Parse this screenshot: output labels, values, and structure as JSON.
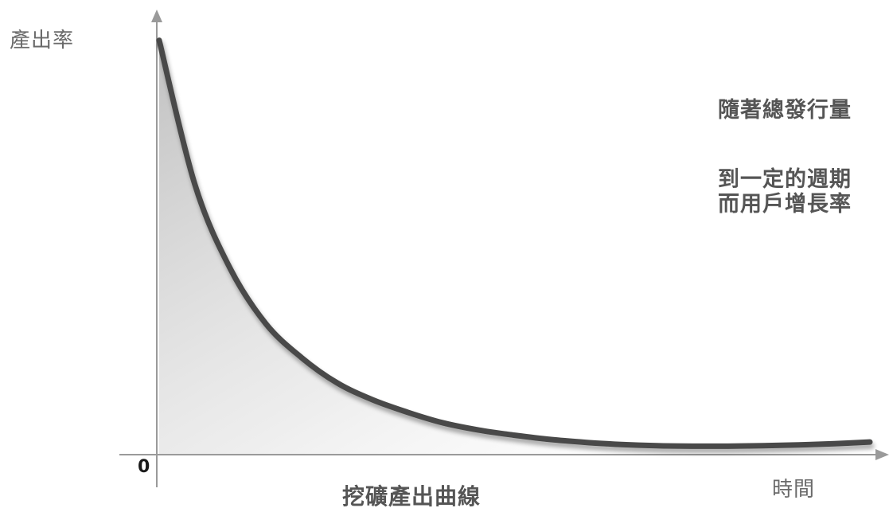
{
  "chart_data": {
    "type": "line",
    "title": "挖礦產出曲線",
    "ylabel": "產出率",
    "xlabel": "時間",
    "origin_label": "0",
    "x": [
      0,
      0.05,
      0.1,
      0.15,
      0.2,
      0.25,
      0.3,
      0.35,
      0.4,
      0.45,
      0.5,
      0.55,
      0.6,
      0.65,
      0.7,
      0.75,
      0.8,
      0.85,
      0.9,
      0.95,
      1.0
    ],
    "y": [
      0.98,
      0.64,
      0.44,
      0.31,
      0.23,
      0.17,
      0.13,
      0.1,
      0.075,
      0.058,
      0.046,
      0.036,
      0.029,
      0.024,
      0.021,
      0.02,
      0.02,
      0.021,
      0.023,
      0.026,
      0.03
    ],
    "xlim": [
      0,
      1
    ],
    "ylim": [
      0,
      1
    ],
    "grid": false,
    "legend": "none",
    "fill_under_curve": true,
    "annotations": [
      "隨著總發行量",
      "到一定的週期",
      "而用戶增長率"
    ],
    "colors": {
      "curve": "#4a4a48",
      "axis": "#9a9a9a",
      "fill": "#bdbdbd",
      "text": "#555555"
    }
  }
}
